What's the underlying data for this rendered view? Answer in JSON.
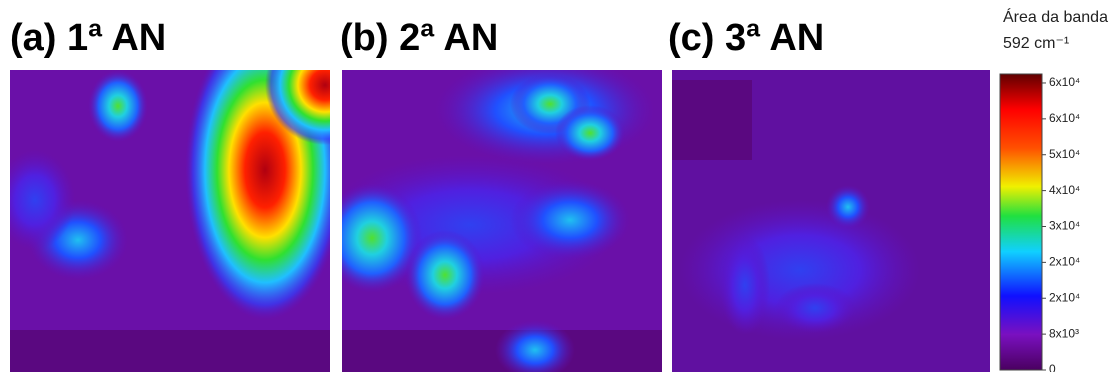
{
  "panels": [
    {
      "title": "(a) 1ª AN"
    },
    {
      "title": "(b) 2ª AN"
    },
    {
      "title": "(c) 3ª AN"
    }
  ],
  "colorbar": {
    "title": [
      "Área da banda",
      "592 cm⁻¹"
    ],
    "lim": [
      0,
      66000
    ],
    "ticks": [
      {
        "value": 0,
        "label": "0"
      },
      {
        "value": 8000,
        "label": "8x10³"
      },
      {
        "value": 16000,
        "label": "2x10⁴"
      },
      {
        "value": 24000,
        "label": "2x10⁴"
      },
      {
        "value": 32000,
        "label": "3x10⁴"
      },
      {
        "value": 40000,
        "label": "4x10⁴"
      },
      {
        "value": 48000,
        "label": "5x10⁴"
      },
      {
        "value": 56000,
        "label": "6x10⁴"
      },
      {
        "value": 64000,
        "label": "6x10⁴"
      }
    ]
  }
}
